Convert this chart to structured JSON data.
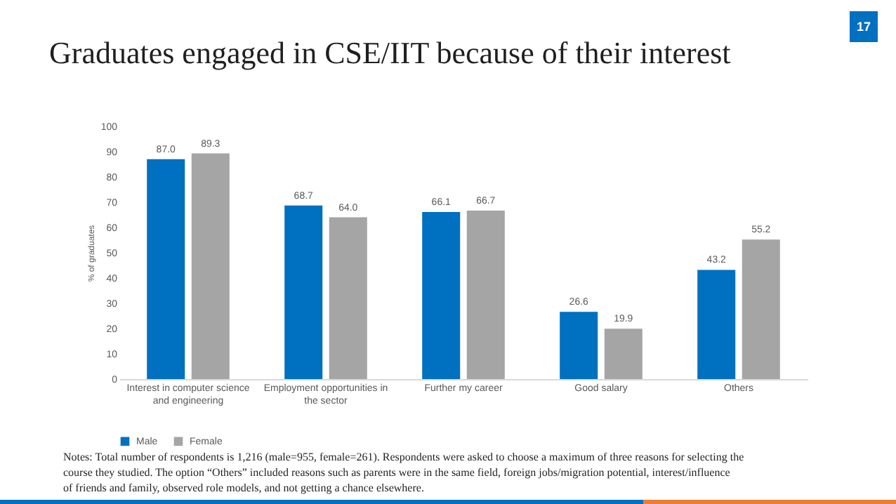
{
  "chart_data": {
    "type": "bar",
    "title": "Graduates engaged in CSE/IIT because of their interest",
    "categories": [
      "Interest in computer science and engineering",
      "Employment opportunities in the sector",
      "Further my career",
      "Good salary",
      "Others"
    ],
    "series": [
      {
        "name": "Male",
        "color": "#0070c0",
        "values": [
          87.0,
          68.7,
          66.1,
          26.6,
          43.2
        ],
        "value_labels": [
          "87.0",
          "68.7",
          "66.1",
          "26.6",
          "43.2"
        ]
      },
      {
        "name": "Female",
        "color": "#a5a5a5",
        "values": [
          89.3,
          64.0,
          66.7,
          19.9,
          55.2
        ],
        "value_labels": [
          "89.3",
          "64.0",
          "66.7",
          "19.9",
          "55.2"
        ]
      }
    ],
    "legend": "bottom",
    "grid": false,
    "ylabel": "% of graduates",
    "ylim": [
      0,
      100
    ],
    "yticks": [
      0,
      10,
      20,
      30,
      40,
      50,
      60,
      70,
      80,
      90,
      100
    ],
    "annotations": [
      "17",
      "Notes: Total number of respondents is 1,216 (male=955, female=261). Respondents were asked to choose a maximum of three reasons for selecting the course they studied. The option “Others” included reasons such as parents were in the same field, foreign jobs/migration potential, interest/influence of friends and family, observed role models, and not getting a chance elsewhere."
    ]
  }
}
